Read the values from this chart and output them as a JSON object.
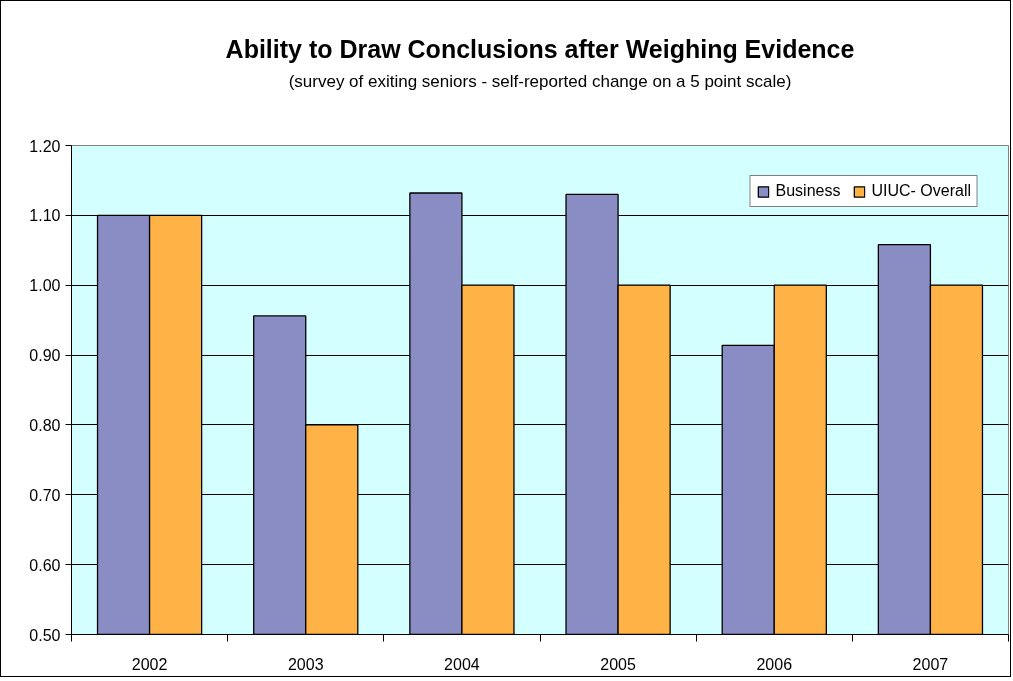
{
  "chart_data": {
    "type": "bar",
    "title": "Ability to Draw Conclusions after Weighing Evidence",
    "subtitle": "(survey of exiting seniors - self-reported change on a 5 point scale)",
    "categories": [
      "2002",
      "2003",
      "2004",
      "2005",
      "2006",
      "2007"
    ],
    "series": [
      {
        "name": "Business",
        "color": "#8a8cc4",
        "values": [
          1.1,
          0.956,
          1.132,
          1.13,
          0.914,
          1.058
        ]
      },
      {
        "name": "UIUC- Overall",
        "color": "#ffb347",
        "values": [
          1.1,
          0.8,
          1.0,
          1.0,
          1.0,
          1.0
        ]
      }
    ],
    "ylim": [
      0.5,
      1.2
    ],
    "yticks": [
      {
        "value": 0.5,
        "label": "0.50"
      },
      {
        "value": 0.6,
        "label": "0.60"
      },
      {
        "value": 0.7,
        "label": "0.70"
      },
      {
        "value": 0.8,
        "label": "0.80"
      },
      {
        "value": 0.9,
        "label": "0.90"
      },
      {
        "value": 1.0,
        "label": "1.00"
      },
      {
        "value": 1.1,
        "label": "1.10"
      },
      {
        "value": 1.2,
        "label": "1.20"
      }
    ],
    "grid": "y",
    "legend": "top right"
  }
}
